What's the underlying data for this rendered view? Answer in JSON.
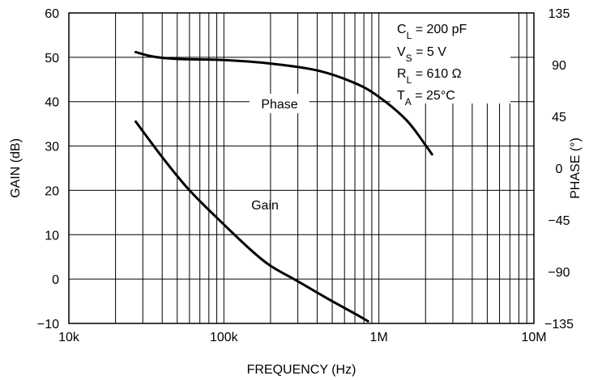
{
  "chart_data": {
    "type": "line",
    "xlabel": "FREQUENCY (Hz)",
    "ylabel": "GAIN (dB)",
    "y2label": "PHASE (°)",
    "xscale": "log",
    "xlim": [
      10000,
      10000000
    ],
    "ylim": [
      -10,
      60
    ],
    "y2lim": [
      -135,
      135
    ],
    "grid": true,
    "x_tick_values": [
      10000,
      100000,
      1000000,
      10000000
    ],
    "x_tick_labels": [
      "10k",
      "100k",
      "1M",
      "10M"
    ],
    "y_ticks": [
      -10,
      0,
      10,
      20,
      30,
      40,
      50,
      60
    ],
    "y_tick_labels": [
      "−10",
      "0",
      "10",
      "20",
      "30",
      "40",
      "50",
      "60"
    ],
    "y2_ticks": [
      -135,
      -90,
      -45,
      0,
      45,
      90,
      135
    ],
    "y2_tick_labels": [
      "−135",
      "−90",
      "−45",
      "0",
      "45",
      "90",
      "135"
    ],
    "series": [
      {
        "name": "Gain",
        "axis": "left",
        "x": [
          27000,
          40000,
          60000,
          100000,
          150000,
          200000,
          300000,
          500000,
          700000,
          850000
        ],
        "y": [
          35.5,
          27.5,
          20,
          12.3,
          6.5,
          3,
          -0.5,
          -5,
          -7.8,
          -9.5
        ]
      },
      {
        "name": "Phase",
        "axis": "right",
        "x": [
          27000,
          35000,
          50000,
          100000,
          200000,
          400000,
          700000,
          1000000,
          1500000,
          2000000,
          2200000
        ],
        "y": [
          101,
          97,
          95,
          94,
          91,
          85,
          74,
          62,
          42,
          20,
          12
        ]
      }
    ],
    "annotations": {
      "cl": {
        "main": "C",
        "sub": "L",
        "rest": " = 200 pF"
      },
      "vs": {
        "main": "V",
        "sub": "S",
        "rest": " = 5 V"
      },
      "rl": {
        "main": "R",
        "sub": "L",
        "rest": " = 610 Ω"
      },
      "ta": {
        "main": "T",
        "sub": "A",
        "rest": " = 25°C"
      }
    }
  }
}
